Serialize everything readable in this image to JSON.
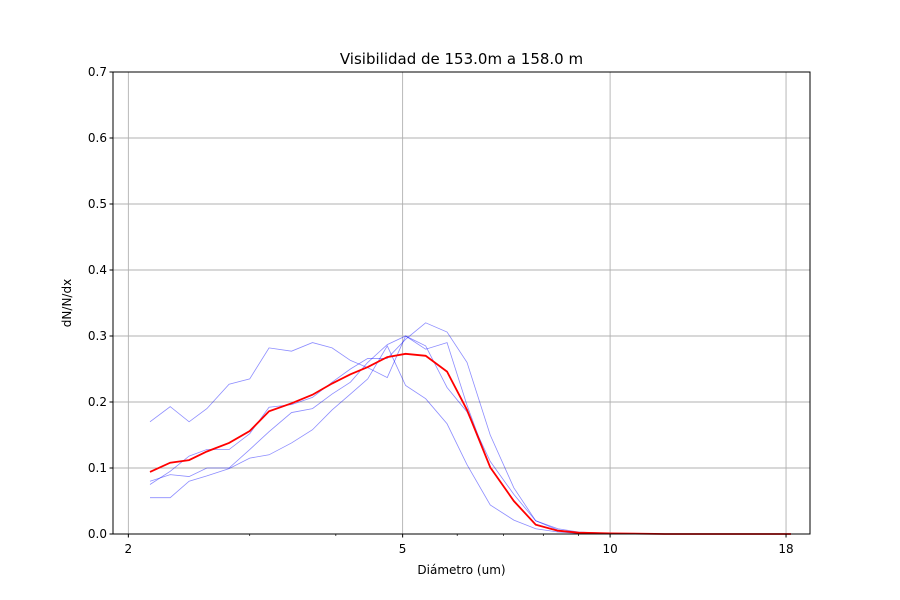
{
  "chart_data": {
    "type": "line",
    "title": "Visibilidad de 153.0m a 158.0 m",
    "xlabel": "Diámetro (um)",
    "ylabel": "dN/N/dx",
    "xscale": "log",
    "xlim": [
      1.9,
      19.5
    ],
    "ylim": [
      0,
      0.7
    ],
    "xticks": [
      2,
      5,
      10,
      18
    ],
    "xtick_labels": [
      "2",
      "5",
      "10",
      "18"
    ],
    "yticks": [
      0.0,
      0.1,
      0.2,
      0.3,
      0.4,
      0.5,
      0.6,
      0.7
    ],
    "ytick_labels": [
      "0.0",
      "0.1",
      "0.2",
      "0.3",
      "0.4",
      "0.5",
      "0.6",
      "0.7"
    ],
    "grid": true,
    "x": [
      2.15,
      2.3,
      2.45,
      2.6,
      2.8,
      3.0,
      3.2,
      3.45,
      3.7,
      3.95,
      4.2,
      4.45,
      4.75,
      5.05,
      5.4,
      5.8,
      6.2,
      6.7,
      7.25,
      7.8,
      8.4,
      9.0,
      10.0,
      12.0,
      15.0,
      18.3
    ],
    "series": [
      {
        "style": "thin",
        "values": [
          0.17,
          0.193,
          0.17,
          0.19,
          0.227,
          0.235,
          0.282,
          0.277,
          0.29,
          0.282,
          0.263,
          0.252,
          0.237,
          0.3,
          0.28,
          0.29,
          0.195,
          0.1,
          0.05,
          0.015,
          0.005,
          0.002,
          0.001,
          0.0,
          0.0,
          0.0
        ]
      },
      {
        "style": "thin",
        "values": [
          0.08,
          0.09,
          0.087,
          0.1,
          0.1,
          0.128,
          0.155,
          0.184,
          0.19,
          0.212,
          0.23,
          0.26,
          0.287,
          0.3,
          0.285,
          0.222,
          0.185,
          0.11,
          0.06,
          0.02,
          0.008,
          0.003,
          0.001,
          0.0,
          0.0,
          0.0
        ]
      },
      {
        "style": "thin",
        "values": [
          0.055,
          0.055,
          0.08,
          0.088,
          0.099,
          0.115,
          0.12,
          0.138,
          0.158,
          0.188,
          0.212,
          0.235,
          0.285,
          0.225,
          0.205,
          0.167,
          0.105,
          0.044,
          0.021,
          0.008,
          0.003,
          0.001,
          0.0,
          0.0,
          0.0,
          0.0
        ]
      },
      {
        "style": "thin",
        "values": [
          0.075,
          0.095,
          0.118,
          0.128,
          0.128,
          0.152,
          0.192,
          0.196,
          0.207,
          0.23,
          0.25,
          0.266,
          0.266,
          0.295,
          0.32,
          0.306,
          0.26,
          0.15,
          0.07,
          0.02,
          0.006,
          0.002,
          0.001,
          0.0,
          0.0,
          0.0
        ]
      },
      {
        "style": "mean",
        "values": [
          0.094,
          0.108,
          0.112,
          0.125,
          0.138,
          0.156,
          0.186,
          0.198,
          0.211,
          0.228,
          0.242,
          0.253,
          0.268,
          0.273,
          0.27,
          0.246,
          0.188,
          0.101,
          0.05,
          0.014,
          0.005,
          0.002,
          0.001,
          0.0,
          0.0,
          0.0
        ]
      }
    ]
  }
}
